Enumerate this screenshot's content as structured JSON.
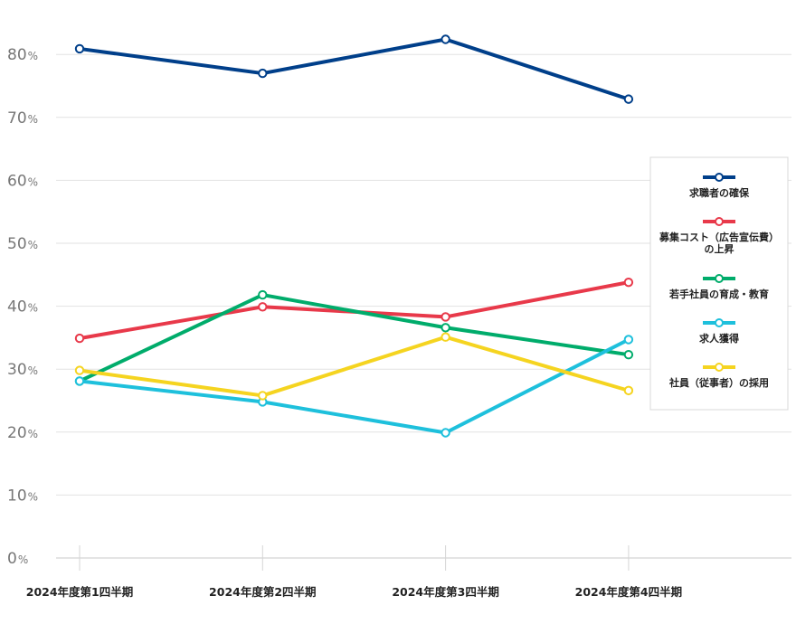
{
  "chart_data": {
    "type": "line",
    "title": "",
    "xlabel": "",
    "ylabel": "",
    "ylim": [
      0,
      85
    ],
    "y_ticks": [
      0,
      10,
      20,
      30,
      40,
      50,
      60,
      70,
      80
    ],
    "y_unit": "%",
    "grid": true,
    "legend_position": "right",
    "categories": [
      "2024年度第1四半期",
      "2024年度第2四半期",
      "2024年度第3四半期",
      "2024年度第4四半期"
    ],
    "series": [
      {
        "name": "求職者の確保",
        "name_lines": [
          "求職者の確保"
        ],
        "color": "#003f8a",
        "values": [
          80.9,
          77.0,
          82.4,
          72.9
        ]
      },
      {
        "name": "募集コスト（広告宣伝費）の上昇",
        "name_lines": [
          "募集コスト（広告宣伝費）",
          "の上昇"
        ],
        "color": "#e8394a",
        "values": [
          34.9,
          39.9,
          38.3,
          43.8
        ]
      },
      {
        "name": "若手社員の育成・教育",
        "name_lines": [
          "若手社員の育成・教育"
        ],
        "color": "#00ac6b",
        "values": [
          28.1,
          41.8,
          36.6,
          32.3
        ]
      },
      {
        "name": "求人獲得",
        "name_lines": [
          "求人獲得"
        ],
        "color": "#1ec0dc",
        "values": [
          28.1,
          24.8,
          19.9,
          34.7
        ]
      },
      {
        "name": "社員（従事者）の採用",
        "name_lines": [
          "社員（従事者）の採用"
        ],
        "color": "#f5d420",
        "values": [
          29.8,
          25.8,
          35.1,
          26.6
        ]
      }
    ]
  }
}
